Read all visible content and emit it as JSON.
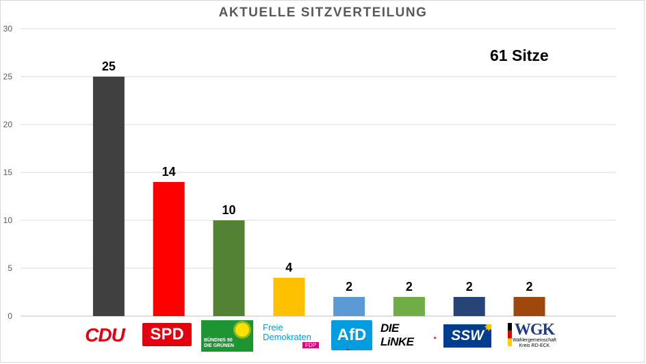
{
  "chart_data": {
    "type": "bar",
    "title": "AKTUELLE SITZVERTEILUNG",
    "annotation": "61 Sitze",
    "categories": [
      "CDU",
      "SPD",
      "BÜNDNIS 90 DIE GRÜNEN",
      "Freie Demokraten FDP",
      "AfD",
      "DIE LINKE.",
      "SSW",
      "WGK"
    ],
    "values": [
      25,
      14,
      10,
      4,
      2,
      2,
      2,
      2
    ],
    "colors": [
      "#404040",
      "#ff0000",
      "#548235",
      "#ffc000",
      "#5b9bd5",
      "#70ad47",
      "#264478",
      "#9e480e"
    ],
    "ylim": [
      0,
      30
    ],
    "yticks": [
      0,
      5,
      10,
      15,
      20,
      25,
      30
    ],
    "grid": true,
    "data_labels": true,
    "legend": "none"
  },
  "logos": {
    "cdu": "CDU",
    "spd": "SPD",
    "gruene_line1": "BÜNDNIS 90",
    "gruene_line2": "DIE GRÜNEN",
    "fdp_line1": "Freie",
    "fdp_line2": "Demokraten",
    "fdp_line3": "FDP",
    "afd": "AfD",
    "linke": "DIE LiNKE",
    "linke_dot": ".",
    "ssw": "SSW",
    "wgk": "WGK",
    "wgk_line1": "Wählergemeinschaft",
    "wgk_line2": "Kreis RD-ECK"
  }
}
